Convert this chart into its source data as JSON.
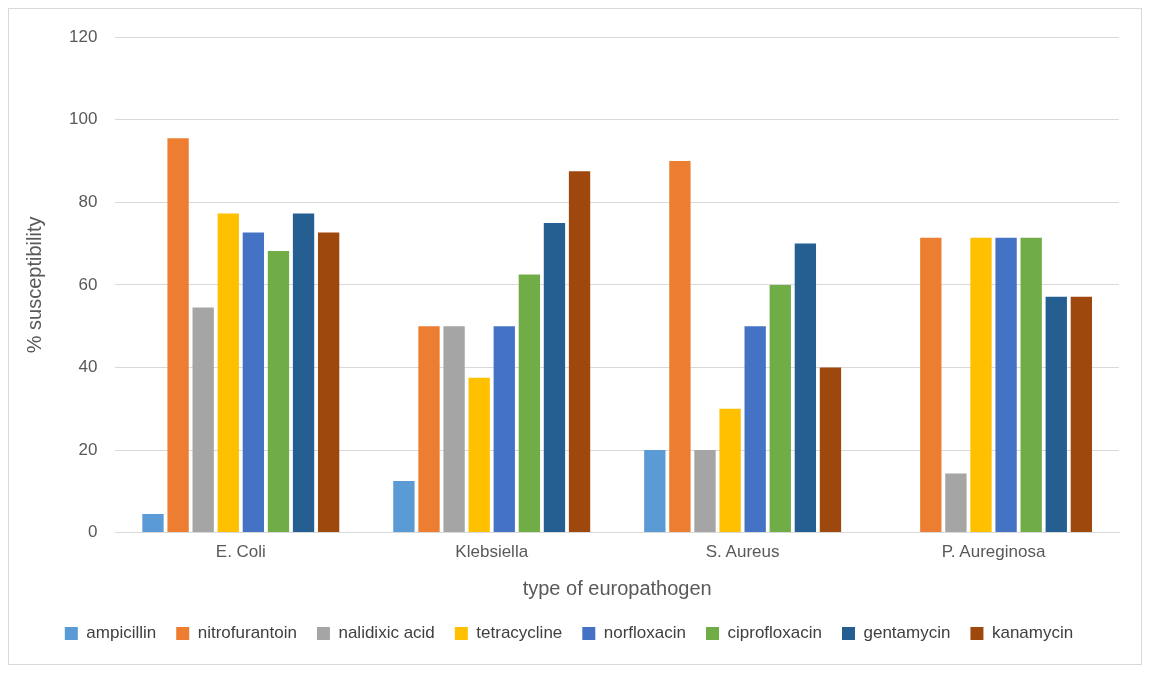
{
  "chart_data": {
    "type": "bar",
    "xlabel": "type of europathogen",
    "ylabel": "% susceptibility",
    "categories": [
      "E. Coli",
      "Klebsiella",
      "S. Aureus",
      "P. Aureginosa"
    ],
    "series": [
      {
        "name": "ampicillin",
        "color": "#5b9bd5",
        "values": [
          4.5,
          12.5,
          20,
          0
        ]
      },
      {
        "name": "nitrofurantoin",
        "color": "#ed7d31",
        "values": [
          95.5,
          50,
          90,
          71.4
        ]
      },
      {
        "name": "nalidixic acid",
        "color": "#a5a5a5",
        "values": [
          54.5,
          50,
          20,
          14.3
        ]
      },
      {
        "name": "tetracycline",
        "color": "#ffc000",
        "values": [
          77.3,
          37.5,
          30,
          71.4
        ]
      },
      {
        "name": "norfloxacin",
        "color": "#4472c4",
        "values": [
          72.7,
          50,
          50,
          71.4
        ]
      },
      {
        "name": "ciprofloxacin",
        "color": "#70ad47",
        "values": [
          68.2,
          62.5,
          60,
          71.4
        ]
      },
      {
        "name": "gentamycin",
        "color": "#255e91",
        "values": [
          77.3,
          75,
          70,
          57.1
        ]
      },
      {
        "name": "kanamycin",
        "color": "#9e480e",
        "values": [
          72.7,
          87.5,
          40,
          57.1
        ]
      }
    ],
    "ylim": [
      0,
      120
    ],
    "yticks": [
      0,
      20,
      40,
      60,
      80,
      100,
      120
    ],
    "grid": "y",
    "legend": "bottom"
  }
}
